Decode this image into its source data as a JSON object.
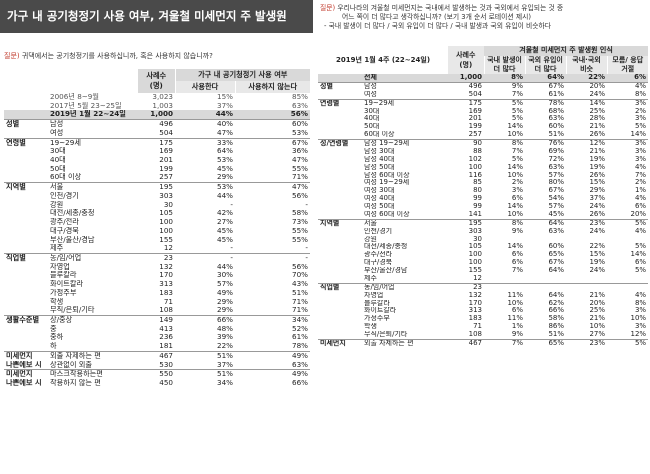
{
  "left": {
    "title": "가구 내 공기청정기 사용 여부, 겨울철 미세먼지 주 발생원",
    "question_mark": "질문)",
    "question": "귀댁에서는 공기청정기를 사용하십니까, 혹은 사용하지 않습니까?",
    "col_sample": "사례수 (명)",
    "col_group": "가구 내 공기청정기 사용 여부",
    "col_use": "사용한다",
    "col_nouse": "사용하지 않는다",
    "rows": [
      {
        "g": "",
        "s": "2006년 8~9월",
        "n": "3,023",
        "a": "15%",
        "b": "85%",
        "t": "ref"
      },
      {
        "g": "",
        "s": "2017년 5월 23~25일",
        "n": "1,003",
        "a": "37%",
        "b": "63%",
        "t": "ref"
      },
      {
        "g": "",
        "s": "2019년 1월 22~24일",
        "n": "1,000",
        "a": "44%",
        "b": "56%",
        "t": "hl"
      },
      {
        "g": "성별",
        "s": "남성",
        "n": "496",
        "a": "40%",
        "b": "60%",
        "t": "sep"
      },
      {
        "g": "",
        "s": "여성",
        "n": "504",
        "a": "47%",
        "b": "53%"
      },
      {
        "g": "연령별",
        "s": "19~29세",
        "n": "175",
        "a": "33%",
        "b": "67%",
        "t": "sep"
      },
      {
        "g": "",
        "s": "30대",
        "n": "169",
        "a": "64%",
        "b": "36%"
      },
      {
        "g": "",
        "s": "40대",
        "n": "201",
        "a": "53%",
        "b": "47%"
      },
      {
        "g": "",
        "s": "50대",
        "n": "199",
        "a": "45%",
        "b": "55%"
      },
      {
        "g": "",
        "s": "60대 이상",
        "n": "257",
        "a": "29%",
        "b": "71%"
      },
      {
        "g": "지역별",
        "s": "서울",
        "n": "195",
        "a": "53%",
        "b": "47%",
        "t": "sep"
      },
      {
        "g": "",
        "s": "인천/경기",
        "n": "303",
        "a": "44%",
        "b": "56%"
      },
      {
        "g": "",
        "s": "강원",
        "n": "30",
        "a": "-",
        "b": "-"
      },
      {
        "g": "",
        "s": "대전/세종/충청",
        "n": "105",
        "a": "42%",
        "b": "58%"
      },
      {
        "g": "",
        "s": "광주/전라",
        "n": "100",
        "a": "27%",
        "b": "73%"
      },
      {
        "g": "",
        "s": "대구/경북",
        "n": "100",
        "a": "45%",
        "b": "55%"
      },
      {
        "g": "",
        "s": "부산/울산/경남",
        "n": "155",
        "a": "45%",
        "b": "55%"
      },
      {
        "g": "",
        "s": "제주",
        "n": "12",
        "a": "-",
        "b": "-"
      },
      {
        "g": "직업별",
        "s": "농/임/어업",
        "n": "23",
        "a": "-",
        "b": "-",
        "t": "sep"
      },
      {
        "g": "",
        "s": "자영업",
        "n": "132",
        "a": "44%",
        "b": "56%"
      },
      {
        "g": "",
        "s": "블루칼라",
        "n": "170",
        "a": "30%",
        "b": "70%"
      },
      {
        "g": "",
        "s": "화이트칼라",
        "n": "313",
        "a": "57%",
        "b": "43%"
      },
      {
        "g": "",
        "s": "가정주부",
        "n": "183",
        "a": "49%",
        "b": "51%"
      },
      {
        "g": "",
        "s": "학생",
        "n": "71",
        "a": "29%",
        "b": "71%"
      },
      {
        "g": "",
        "s": "무직/은퇴/기타",
        "n": "108",
        "a": "29%",
        "b": "71%"
      },
      {
        "g": "생활수준별",
        "s": "상/중상",
        "n": "149",
        "a": "66%",
        "b": "34%",
        "t": "sep"
      },
      {
        "g": "",
        "s": "중",
        "n": "413",
        "a": "48%",
        "b": "52%"
      },
      {
        "g": "",
        "s": "중하",
        "n": "236",
        "a": "39%",
        "b": "61%"
      },
      {
        "g": "",
        "s": "하",
        "n": "181",
        "a": "22%",
        "b": "78%"
      },
      {
        "g": "미세먼지",
        "s": "외출 자제하는 편",
        "n": "467",
        "a": "51%",
        "b": "49%",
        "t": "sep"
      },
      {
        "g": "나쁜에보 시",
        "s": "상관없이 외출",
        "n": "530",
        "a": "37%",
        "b": "63%"
      },
      {
        "g": "미세먼지",
        "s": "마스크착용하는편",
        "n": "550",
        "a": "51%",
        "b": "49%",
        "t": "sep"
      },
      {
        "g": "나쁜에보 시",
        "s": "착용하지 않는 편",
        "n": "450",
        "a": "34%",
        "b": "66%"
      }
    ]
  },
  "right": {
    "question_mark": "질문)",
    "question_l1": "우리나라의 겨울철 미세먼지는 국내에서 발생하는 것과 국외에서 유입되는 것 중",
    "question_l2": "어느 쪽이 더 많다고 생각하십니까? (보기 3개 순서 로테이션 제시)",
    "question_l3": "- 국내 발생이 더 많다 / 국외 유입이 더 많다 / 국내 발생과 국외 유입이 비슷하다",
    "period": "2019년 1월 4주 (22~24일)",
    "col_sample": "사례수 (명)",
    "col_group": "겨울철 미세먼지 주 발생원 인식",
    "c1": "국내 발생이 더 많다",
    "c2": "국외 유입이 더 많다",
    "c3": "국내·국외 비슷",
    "c4": "모름/ 응답거절",
    "rows": [
      {
        "g": "",
        "s": "전체",
        "n": "1,000",
        "a": "8%",
        "b": "64%",
        "c": "22%",
        "d": "6%",
        "t": "hl"
      },
      {
        "g": "성별",
        "s": "남성",
        "n": "496",
        "a": "9%",
        "b": "67%",
        "c": "20%",
        "d": "4%",
        "t": "sep"
      },
      {
        "g": "",
        "s": "여성",
        "n": "504",
        "a": "7%",
        "b": "61%",
        "c": "24%",
        "d": "8%"
      },
      {
        "g": "연령별",
        "s": "19~29세",
        "n": "175",
        "a": "5%",
        "b": "78%",
        "c": "14%",
        "d": "3%",
        "t": "sep"
      },
      {
        "g": "",
        "s": "30대",
        "n": "169",
        "a": "5%",
        "b": "68%",
        "c": "25%",
        "d": "2%"
      },
      {
        "g": "",
        "s": "40대",
        "n": "201",
        "a": "5%",
        "b": "63%",
        "c": "28%",
        "d": "3%"
      },
      {
        "g": "",
        "s": "50대",
        "n": "199",
        "a": "14%",
        "b": "60%",
        "c": "21%",
        "d": "5%"
      },
      {
        "g": "",
        "s": "60대 이상",
        "n": "257",
        "a": "10%",
        "b": "51%",
        "c": "26%",
        "d": "14%"
      },
      {
        "g": "성/연령별",
        "s": "남성 19~29세",
        "n": "90",
        "a": "8%",
        "b": "76%",
        "c": "12%",
        "d": "3%",
        "t": "sep"
      },
      {
        "g": "",
        "s": "남성 30대",
        "n": "88",
        "a": "7%",
        "b": "69%",
        "c": "21%",
        "d": "3%"
      },
      {
        "g": "",
        "s": "남성 40대",
        "n": "102",
        "a": "5%",
        "b": "72%",
        "c": "19%",
        "d": "3%"
      },
      {
        "g": "",
        "s": "남성 50대",
        "n": "100",
        "a": "14%",
        "b": "63%",
        "c": "19%",
        "d": "4%"
      },
      {
        "g": "",
        "s": "남성 60대 이상",
        "n": "116",
        "a": "10%",
        "b": "57%",
        "c": "26%",
        "d": "7%"
      },
      {
        "g": "",
        "s": "여성 19~29세",
        "n": "85",
        "a": "2%",
        "b": "80%",
        "c": "15%",
        "d": "2%"
      },
      {
        "g": "",
        "s": "여성 30대",
        "n": "80",
        "a": "3%",
        "b": "67%",
        "c": "29%",
        "d": "1%"
      },
      {
        "g": "",
        "s": "여성 40대",
        "n": "99",
        "a": "6%",
        "b": "54%",
        "c": "37%",
        "d": "4%"
      },
      {
        "g": "",
        "s": "여성 50대",
        "n": "99",
        "a": "14%",
        "b": "57%",
        "c": "24%",
        "d": "6%"
      },
      {
        "g": "",
        "s": "여성 60대 이상",
        "n": "141",
        "a": "10%",
        "b": "45%",
        "c": "26%",
        "d": "20%"
      },
      {
        "g": "지역별",
        "s": "서울",
        "n": "195",
        "a": "8%",
        "b": "64%",
        "c": "23%",
        "d": "5%",
        "t": "sep"
      },
      {
        "g": "",
        "s": "인천/경기",
        "n": "303",
        "a": "9%",
        "b": "63%",
        "c": "24%",
        "d": "4%"
      },
      {
        "g": "",
        "s": "강원",
        "n": "30",
        "a": "",
        "b": "",
        "c": "",
        "d": ""
      },
      {
        "g": "",
        "s": "대전/세종/충청",
        "n": "105",
        "a": "14%",
        "b": "60%",
        "c": "22%",
        "d": "5%"
      },
      {
        "g": "",
        "s": "광주/전라",
        "n": "100",
        "a": "6%",
        "b": "65%",
        "c": "15%",
        "d": "14%"
      },
      {
        "g": "",
        "s": "대구/경북",
        "n": "100",
        "a": "6%",
        "b": "67%",
        "c": "19%",
        "d": "6%"
      },
      {
        "g": "",
        "s": "부산/울산/경남",
        "n": "155",
        "a": "7%",
        "b": "64%",
        "c": "24%",
        "d": "5%"
      },
      {
        "g": "",
        "s": "제주",
        "n": "12",
        "a": "",
        "b": "",
        "c": "",
        "d": ""
      },
      {
        "g": "직업별",
        "s": "농/임/어업",
        "n": "23",
        "a": "",
        "b": "",
        "c": "",
        "d": "",
        "t": "sep"
      },
      {
        "g": "",
        "s": "자영업",
        "n": "132",
        "a": "11%",
        "b": "64%",
        "c": "21%",
        "d": "4%"
      },
      {
        "g": "",
        "s": "블루칼라",
        "n": "170",
        "a": "10%",
        "b": "62%",
        "c": "20%",
        "d": "8%"
      },
      {
        "g": "",
        "s": "화이트칼라",
        "n": "313",
        "a": "6%",
        "b": "66%",
        "c": "25%",
        "d": "3%"
      },
      {
        "g": "",
        "s": "가정주부",
        "n": "183",
        "a": "11%",
        "b": "58%",
        "c": "21%",
        "d": "10%"
      },
      {
        "g": "",
        "s": "학생",
        "n": "71",
        "a": "1%",
        "b": "86%",
        "c": "10%",
        "d": "3%"
      },
      {
        "g": "",
        "s": "무직/은퇴/기타",
        "n": "108",
        "a": "9%",
        "b": "51%",
        "c": "27%",
        "d": "12%"
      },
      {
        "g": "미세먼지",
        "s": "외출 자제하는 편",
        "n": "467",
        "a": "7%",
        "b": "65%",
        "c": "23%",
        "d": "5%",
        "t": "sep"
      }
    ]
  }
}
